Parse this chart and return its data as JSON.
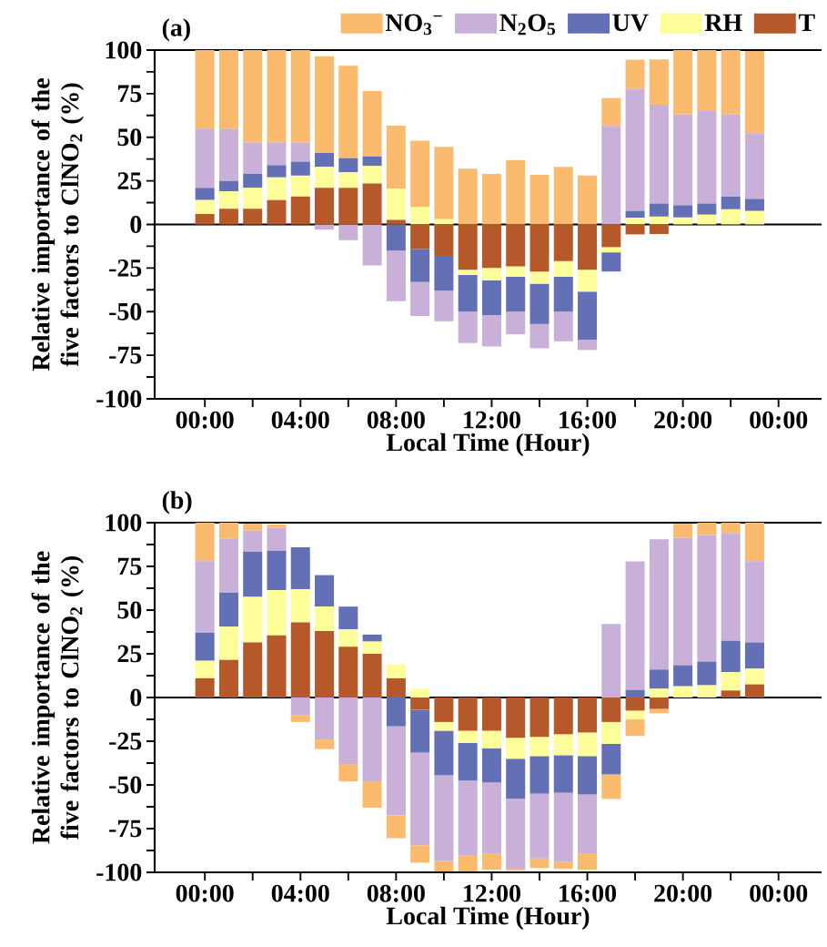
{
  "chart_data": [
    {
      "type": "bar",
      "stacked": true,
      "title": "(a)",
      "xlabel": "Local Time (Hour)",
      "ylabel": "Relative importance of the five factors to ClNO$_{2}$ (%)",
      "legend": "top",
      "x": [
        0,
        1,
        2,
        3,
        4,
        5,
        6,
        7,
        8,
        9,
        10,
        11,
        12,
        13,
        14,
        15,
        16,
        17,
        18,
        19,
        20,
        21,
        22,
        23
      ],
      "xlim": [
        -2.1,
        25.8
      ],
      "xticks": [
        {
          "value": 0,
          "label": "00:00"
        },
        {
          "value": 2,
          "label": null
        },
        {
          "value": 4,
          "label": "04:00"
        },
        {
          "value": 6,
          "label": null
        },
        {
          "value": 8,
          "label": "08:00"
        },
        {
          "value": 10,
          "label": null
        },
        {
          "value": 12,
          "label": "12:00"
        },
        {
          "value": 14,
          "label": null
        },
        {
          "value": 16,
          "label": "16:00"
        },
        {
          "value": 18,
          "label": null
        },
        {
          "value": 20,
          "label": "20:00"
        },
        {
          "value": 22,
          "label": null
        },
        {
          "value": 24,
          "label": "00:00"
        }
      ],
      "ylim": [
        -100,
        100
      ],
      "yticks": [
        -100,
        {
          "value": -87.5,
          "label": null
        },
        -75,
        {
          "value": -62.5,
          "label": null
        },
        -50,
        {
          "value": -37.5,
          "label": null
        },
        -25,
        {
          "value": -12.5,
          "label": null
        },
        0,
        {
          "value": 12.5,
          "label": null
        },
        25,
        {
          "value": 37.5,
          "label": null
        },
        50,
        {
          "value": 62.5,
          "label": null
        },
        75,
        {
          "value": 87.5,
          "label": null
        },
        100
      ],
      "ref_lines": [
        {
          "axis": "y",
          "value": 0
        }
      ],
      "series": [
        {
          "name": "T",
          "color": "#b5592a",
          "values": [
            6,
            9,
            9,
            14,
            16,
            21,
            21,
            23.5,
            2.6,
            -14,
            -18,
            -26,
            -25,
            -24,
            -27,
            -21,
            -26,
            -13,
            -5.7,
            -5.5,
            0,
            0,
            0,
            null
          ]
        },
        {
          "name": "RH",
          "color": "#fdfd9a",
          "values": [
            8,
            10,
            12,
            13,
            12,
            12,
            9,
            10,
            18,
            10,
            3,
            -3,
            -7,
            -6,
            -7,
            -9,
            -12.5,
            -3,
            3.8,
            4.5,
            4,
            5.6,
            8.7,
            7.7
          ]
        },
        {
          "name": "UV",
          "color": "#6470b6",
          "values": [
            7,
            6,
            8,
            7,
            8,
            8,
            8,
            5.5,
            -15,
            -19,
            -20,
            -21,
            -20,
            -20,
            -23,
            -20,
            -27.5,
            -11,
            4,
            7.5,
            7,
            6.4,
            7.3,
            7
          ]
        },
        {
          "name": "N$_{2}$O$_{5}$",
          "color": "#c8b0d8",
          "values": [
            34,
            30,
            18,
            13,
            11,
            -3,
            -9,
            -23.5,
            -29,
            -19.5,
            -17.5,
            -18,
            -18,
            -13,
            -14,
            -17,
            -6,
            56.5,
            70,
            56.7,
            52,
            53,
            47,
            37.6
          ]
        },
        {
          "name": "NO$_{3}$$^{−}$",
          "color": "#fbbb6e",
          "values": [
            45,
            45,
            53,
            53,
            53,
            55.5,
            53,
            37.5,
            36,
            38,
            41.5,
            32,
            29,
            37,
            28.5,
            33,
            28,
            16,
            16.7,
            26,
            37,
            35,
            37,
            47.2
          ]
        }
      ]
    },
    {
      "type": "bar",
      "stacked": true,
      "title": "(b)",
      "xlabel": "Local Time (Hour)",
      "ylabel": "Relative importance of the five factors to ClNO$_{2}$ (%)",
      "x": [
        0,
        1,
        2,
        3,
        4,
        5,
        6,
        7,
        8,
        9,
        10,
        11,
        12,
        13,
        14,
        15,
        16,
        17,
        18,
        19,
        20,
        21,
        22,
        23
      ],
      "xlim": [
        -2.1,
        25.8
      ],
      "xticks": [
        {
          "value": 0,
          "label": "00:00"
        },
        {
          "value": 2,
          "label": null
        },
        {
          "value": 4,
          "label": "04:00"
        },
        {
          "value": 6,
          "label": null
        },
        {
          "value": 8,
          "label": "08:00"
        },
        {
          "value": 10,
          "label": null
        },
        {
          "value": 12,
          "label": "12:00"
        },
        {
          "value": 14,
          "label": null
        },
        {
          "value": 16,
          "label": "16:00"
        },
        {
          "value": 18,
          "label": null
        },
        {
          "value": 20,
          "label": "20:00"
        },
        {
          "value": 22,
          "label": null
        },
        {
          "value": 24,
          "label": "00:00"
        }
      ],
      "ylim": [
        -100,
        100
      ],
      "yticks": [
        -100,
        {
          "value": -87.5,
          "label": null
        },
        -75,
        {
          "value": -62.5,
          "label": null
        },
        -50,
        {
          "value": -37.5,
          "label": null
        },
        -25,
        {
          "value": -12.5,
          "label": null
        },
        0,
        {
          "value": 12.5,
          "label": null
        },
        25,
        {
          "value": 37.5,
          "label": null
        },
        50,
        {
          "value": 62.5,
          "label": null
        },
        75,
        {
          "value": 87.5,
          "label": null
        },
        100
      ],
      "ref_lines": [
        {
          "axis": "y",
          "value": 0
        }
      ],
      "series": [
        {
          "color": "#b5592a",
          "values": [
            11,
            21.5,
            31.5,
            35.5,
            43,
            38,
            29,
            25,
            11,
            -7,
            -14,
            -19,
            -19,
            -23,
            -22.5,
            -21,
            -20,
            -14,
            -7.5,
            -6.5,
            0,
            0,
            4,
            7.5
          ]
        },
        {
          "color": "#fdfd9a",
          "values": [
            10,
            19,
            26,
            26,
            19,
            14,
            10,
            7,
            8,
            5,
            -5,
            -7,
            -10,
            -12,
            -11,
            -12,
            -13.5,
            -12.5,
            -5,
            5,
            6.4,
            7,
            10.5,
            9
          ]
        },
        {
          "color": "#6470b6",
          "values": [
            16,
            19.5,
            26,
            22.5,
            24,
            18,
            13,
            4,
            -16.5,
            -24.5,
            -25.5,
            -21.5,
            -19.5,
            -23,
            -21.5,
            -21.5,
            -22,
            -17.5,
            4.3,
            11,
            12,
            13.5,
            18,
            15
          ]
        },
        {
          "color": "#c8b0d8",
          "values": [
            41,
            31,
            12,
            13,
            -10,
            -24,
            -38,
            -48,
            -51,
            -53,
            -49,
            -43,
            -41,
            -40,
            -37,
            -39.5,
            -33.5,
            42,
            73.5,
            74.5,
            73,
            72.5,
            61.5,
            46.5
          ]
        },
        {
          "color": "#fbbb6e",
          "values": [
            22,
            9,
            4,
            2,
            -4,
            -5.5,
            -10,
            -15,
            -13,
            -10,
            -6,
            -9,
            -9,
            -1,
            -5.5,
            -4,
            -9.5,
            -14,
            -9.5,
            -2.5,
            8,
            7,
            6,
            22
          ]
        }
      ]
    }
  ]
}
